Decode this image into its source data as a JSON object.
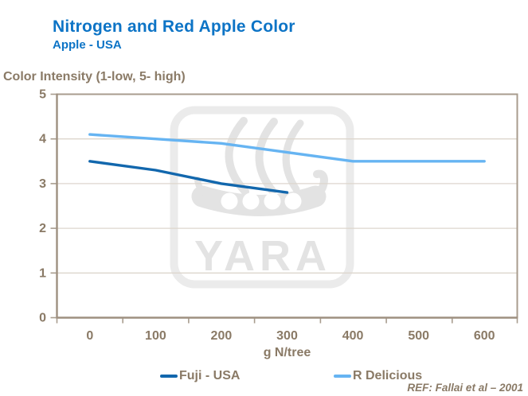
{
  "chart_data": {
    "type": "line",
    "title": "Nitrogen and Red Apple Color",
    "subtitle": "Apple - USA",
    "ylabel": "Color Intensity (1-low, 5- high)",
    "xlabel": "g N/tree",
    "xlim": [
      0,
      600
    ],
    "ylim": [
      0,
      5
    ],
    "xticklabels": [
      "0",
      "100",
      "200",
      "300",
      "400",
      "500",
      "600"
    ],
    "yticklabels": [
      "0",
      "1",
      "2",
      "3",
      "4",
      "5"
    ],
    "grid": "horizontal",
    "legend_position": "bottom",
    "series": [
      {
        "name": "Fuji - USA",
        "color": "#1267ad",
        "x": [
          0,
          100,
          200,
          300
        ],
        "values": [
          3.5,
          3.3,
          3.0,
          2.8
        ]
      },
      {
        "name": "R Delicious",
        "color": "#66b4f2",
        "x": [
          0,
          100,
          200,
          300,
          400,
          500,
          600
        ],
        "values": [
          4.1,
          4.0,
          3.9,
          3.7,
          3.5,
          3.5,
          3.5
        ]
      }
    ]
  },
  "watermark": {
    "text": "YARA"
  },
  "footer": {
    "reference": "REF: Fallai et al – 2001"
  },
  "colors": {
    "title_blue": "#0d74c6",
    "axis_text_brown": "#8a7a66",
    "axis_line_tan": "#a89c8e",
    "gridline": "#ddd6cd",
    "watermark_gray": "#e3e3e3",
    "series_fuji": "#1267ad",
    "series_r_delicious": "#66b4f2"
  }
}
